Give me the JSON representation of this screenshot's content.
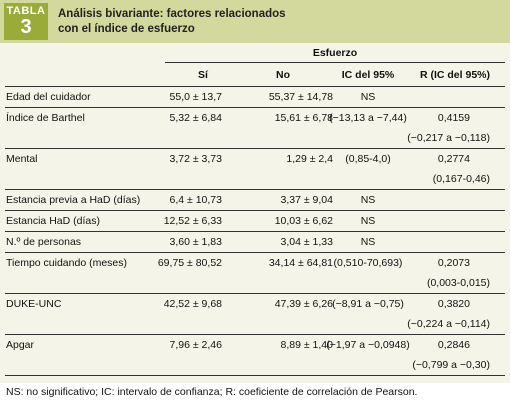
{
  "header": {
    "tag": "TABLA",
    "number": "3",
    "title_lines": [
      "Análisis bivariante: factores relacionados",
      "con el índice de esfuerzo"
    ]
  },
  "table": {
    "group": "Esfuerzo",
    "columns": [
      "Sí",
      "No",
      "IC del 95%",
      "R (IC del 95%)"
    ],
    "rows": [
      {
        "label": "Edad del cuidador",
        "si": "55,0 ± 13,7",
        "no": "55,37 ± 14,78",
        "ic": "NS"
      },
      {
        "label": "Índice de Barthel",
        "si": "5,32 ± 6,84",
        "no": "15,61 ± 6,78",
        "ic": "(−13,13 a −7,44)",
        "r": "0,4159",
        "r_ic": "(−0,217 a −0,118)"
      },
      {
        "label": "Mental",
        "si": "3,72 ± 3,73",
        "no": "1,29 ± 2,4",
        "ic": "(0,85-4,0)",
        "r": "0,2774",
        "r_ic": "(0,167-0,46)"
      },
      {
        "label": "Estancia previa a HaD (días)",
        "si": "6,4 ± 10,73",
        "no": "3,37 ± 9,04",
        "ic": "NS"
      },
      {
        "label": "Estancia HaD (días)",
        "si": "12,52 ± 6,33",
        "no": "10,03 ± 6,62",
        "ic": "NS"
      },
      {
        "label": "N.º de personas",
        "si": "3,60 ± 1,83",
        "no": "3,04 ± 1,33",
        "ic": "NS"
      },
      {
        "label": "Tiempo cuidando (meses)",
        "si": "69,75 ± 80,52",
        "no": "34,14 ± 64,81",
        "ic": "(0,510-70,693)",
        "r": "0,2073",
        "r_ic": "(0,003-0,015)"
      },
      {
        "label": "DUKE-UNC",
        "si": "42,52 ± 9,68",
        "no": "47,39 ± 6,26",
        "ic": "(−8,91 a −0,75)",
        "r": "0,3820",
        "r_ic": "(−0,224 a −0,114)"
      },
      {
        "label": "Apgar",
        "si": "7,96 ± 2,46",
        "no": "8,89 ± 1,40",
        "ic": "(−1,97 a −0,0948)",
        "r": "0,2846",
        "r_ic": "(−0,799 a −0,30)"
      }
    ]
  },
  "footnote": "NS: no significativo; IC: intervalo de confianza; R: coeficiente de correlación de Pearson."
}
